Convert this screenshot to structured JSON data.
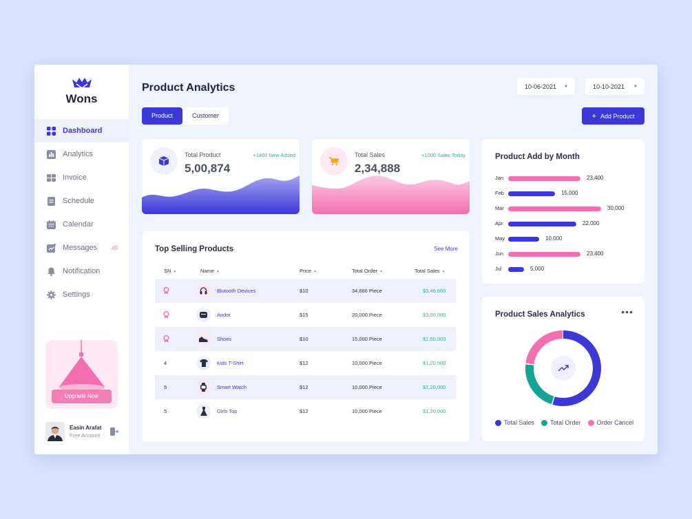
{
  "app": {
    "brand": "Wons"
  },
  "sidebar": {
    "items": [
      {
        "label": "Dashboard",
        "icon": "grid-icon",
        "active": true
      },
      {
        "label": "Analytics",
        "icon": "bar-chart-icon"
      },
      {
        "label": "Invoice",
        "icon": "invoice-icon"
      },
      {
        "label": "Schedule",
        "icon": "schedule-icon"
      },
      {
        "label": "Calendar",
        "icon": "calendar-icon"
      },
      {
        "label": "Messages",
        "icon": "message-icon",
        "badge": "49"
      },
      {
        "label": "Notification",
        "icon": "bell-icon"
      },
      {
        "label": "Settings",
        "icon": "gear-icon"
      }
    ],
    "promo_button": "Upgrade Now",
    "user": {
      "name": "Easin Arafat",
      "role": "Free Account"
    }
  },
  "header": {
    "title": "Product Analytics",
    "date_from": "10-06-2021",
    "date_to": "10-10-2021",
    "tabs": [
      "Product",
      "Customer"
    ],
    "add_button": "Add Product"
  },
  "stats": [
    {
      "label": "Total Product",
      "value": "5,00,874",
      "note": "+1400 New Added",
      "color": "#3c38d8"
    },
    {
      "label": "Total Sales",
      "value": "2,34,888",
      "note": "+1000 Sales Today",
      "color": "#f36fb1"
    }
  ],
  "table": {
    "title": "Top Selling Products",
    "see_more": "See More",
    "headers": [
      "SN",
      "Name",
      "Price",
      "Total Order",
      "Total Sales"
    ],
    "rows": [
      {
        "sn": "",
        "name": "Blutooth Devices",
        "price": "$10",
        "order": "34,666 Piece",
        "sales": "$3,46,660"
      },
      {
        "sn": "",
        "name": "Airdot",
        "price": "$15",
        "order": "20,000 Piece",
        "sales": "$3,00,000"
      },
      {
        "sn": "",
        "name": "Shoes",
        "price": "$10",
        "order": "15,000 Piece",
        "sales": "$1,50,000"
      },
      {
        "sn": "4",
        "name": "Kids T-Shirt",
        "price": "$12",
        "order": "10,000 Piece",
        "sales": "$1,20,000"
      },
      {
        "sn": "5",
        "name": "Smart Watch",
        "price": "$12",
        "order": "10,000 Piece",
        "sales": "$1,20,000"
      },
      {
        "sn": "5",
        "name": "Girls Top",
        "price": "$12",
        "order": "10,000 Piece",
        "sales": "$1,20,000"
      }
    ]
  },
  "monthly": {
    "title": "Product Add  by Month",
    "chart_data": {
      "type": "bar",
      "orientation": "horizontal",
      "categories": [
        "Jan",
        "Feb",
        "Mar",
        "Apr",
        "May",
        "Jun",
        "Jul"
      ],
      "values": [
        23400,
        15000,
        30000,
        22000,
        10000,
        23400,
        5000
      ],
      "labels": [
        "23,400",
        "15,000",
        "30,000",
        "22,000",
        "10,000",
        "23,400",
        "5,000"
      ],
      "colors": [
        "#f36fb1",
        "#3c38d8",
        "#f36fb1",
        "#3c38d8",
        "#3c38d8",
        "#f36fb1",
        "#3c38d8"
      ],
      "xlim": [
        0,
        30000
      ]
    }
  },
  "donut": {
    "title": "Product Sales Analytics",
    "more": "•••",
    "chart_data": {
      "type": "pie",
      "style": "donut",
      "series": [
        {
          "name": "Total Sales",
          "value": 55,
          "color": "#3c38d8"
        },
        {
          "name": "Total Order",
          "value": 22,
          "color": "#14a394"
        },
        {
          "name": "Order Cancel",
          "value": 23,
          "color": "#f36fb1"
        }
      ]
    }
  }
}
